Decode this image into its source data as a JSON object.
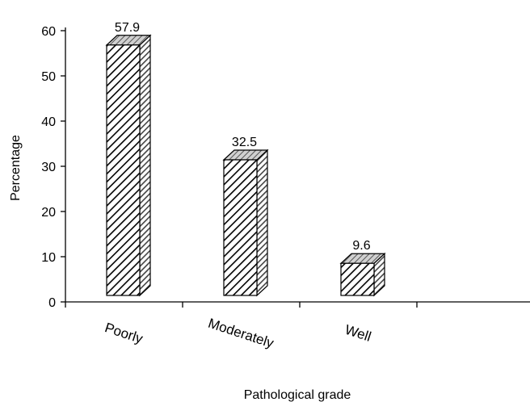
{
  "chart_data": {
    "type": "bar",
    "categories": [
      "Poorly",
      "Moderately",
      "Well"
    ],
    "values": [
      57.9,
      32.5,
      9.6
    ],
    "data_labels": [
      "57.9",
      "32.5",
      "9.6"
    ],
    "xlabel": "Pathological grade",
    "ylabel": "Percentage",
    "ylim": [
      0,
      60
    ],
    "yticks": [
      "0",
      "10",
      "20",
      "30",
      "40",
      "50",
      "60"
    ],
    "grid": false,
    "legend": "none",
    "style": "3d-hatched",
    "colors": {
      "bar_fill": "#ffffff",
      "hatch": "#000000",
      "side_dark": "#6b6b6b",
      "top": "#a9a9a9",
      "axis": "#000000"
    }
  }
}
